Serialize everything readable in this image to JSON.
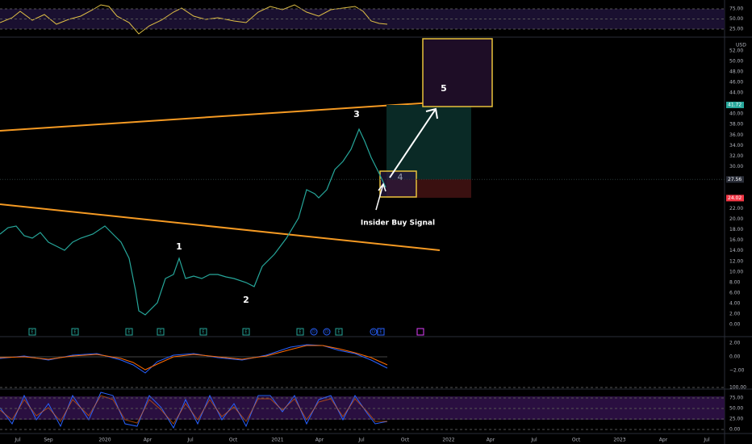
{
  "rsi_axis": [
    {
      "value": 75,
      "label": "75.00"
    },
    {
      "value": 50,
      "label": "50.00"
    },
    {
      "value": 25,
      "label": "25.00"
    }
  ],
  "price_axis": {
    "currency": "USD",
    "ticks": [
      {
        "value": 52,
        "label": "52.00"
      },
      {
        "value": 50,
        "label": "50.00"
      },
      {
        "value": 48,
        "label": "48.00"
      },
      {
        "value": 46,
        "label": "46.00"
      },
      {
        "value": 44,
        "label": "44.00"
      },
      {
        "value": 40,
        "label": "40.00"
      },
      {
        "value": 38,
        "label": "38.00"
      },
      {
        "value": 36,
        "label": "36.00"
      },
      {
        "value": 34,
        "label": "34.00"
      },
      {
        "value": 32,
        "label": "32.00"
      },
      {
        "value": 30,
        "label": "30.00"
      },
      {
        "value": 22,
        "label": "22.00"
      },
      {
        "value": 20,
        "label": "20.00"
      },
      {
        "value": 18,
        "label": "18.00"
      },
      {
        "value": 16,
        "label": "16.00"
      },
      {
        "value": 14,
        "label": "14.00"
      },
      {
        "value": 12,
        "label": "12.00"
      },
      {
        "value": 10,
        "label": "10.00"
      },
      {
        "value": 8,
        "label": "8.00"
      },
      {
        "value": 6,
        "label": "6.00"
      },
      {
        "value": 4,
        "label": "4.00"
      },
      {
        "value": 2,
        "label": "2.00"
      },
      {
        "value": 0,
        "label": "0.00"
      }
    ],
    "tags": [
      {
        "value": 41.72,
        "label": "41.72",
        "color": "#26a69a"
      },
      {
        "value": 27.56,
        "label": "27.56",
        "color": "#2a2e39"
      },
      {
        "value": 24.02,
        "label": "24.02",
        "color": "#f23645"
      }
    ]
  },
  "macd_axis": [
    {
      "value": 2,
      "label": "2.00"
    },
    {
      "value": 0,
      "label": "0.00"
    },
    {
      "value": -2,
      "label": "−2.00"
    }
  ],
  "stoch_axis": [
    {
      "value": 100,
      "label": "100.00"
    },
    {
      "value": 75,
      "label": "75.00"
    },
    {
      "value": 50,
      "label": "50.00"
    },
    {
      "value": 25,
      "label": "25.00"
    },
    {
      "value": 0,
      "label": "0.00"
    }
  ],
  "time_axis": [
    "Jul",
    "Sep",
    "2020",
    "Apr",
    "Jul",
    "Oct",
    "2021",
    "Apr",
    "Jul",
    "Oct",
    "2022",
    "Apr",
    "Jul",
    "Oct",
    "2023",
    "Apr",
    "Jul"
  ],
  "annotations": {
    "wave1": "1",
    "wave2": "2",
    "wave3": "3",
    "wave4": "4",
    "wave5": "5",
    "signal": "Insider Buy Signal"
  },
  "events": [
    "E",
    "E",
    "E",
    "E",
    "E",
    "E",
    "E",
    "D",
    "D",
    "E",
    "D",
    "E"
  ]
}
